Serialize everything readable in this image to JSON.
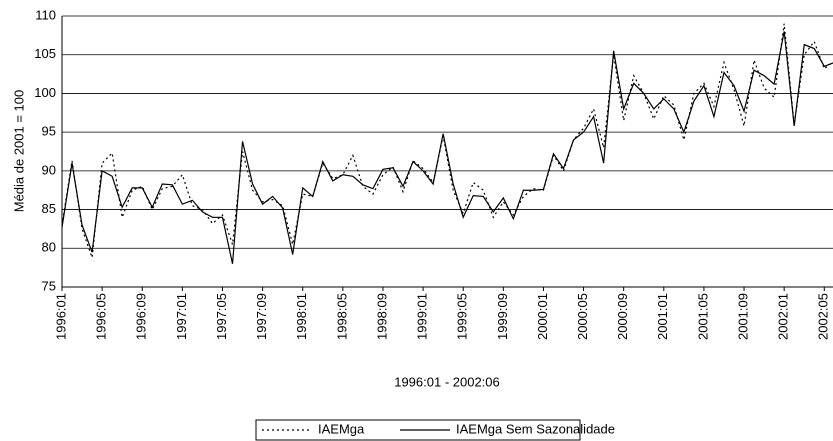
{
  "chart_data": {
    "type": "line",
    "x_label": "1996:01 - 2002:06",
    "y_label": "Média de 2001 = 100",
    "categories": [
      "1996:01",
      null,
      null,
      null,
      "1996:05",
      null,
      null,
      null,
      "1996:09",
      null,
      null,
      null,
      "1997:01",
      null,
      null,
      null,
      "1997:05",
      null,
      null,
      null,
      "1997:09",
      null,
      null,
      null,
      "1998:01",
      null,
      null,
      null,
      "1998:05",
      null,
      null,
      null,
      "1998:09",
      null,
      null,
      null,
      "1999:01",
      null,
      null,
      null,
      "1999:05",
      null,
      null,
      null,
      "1999:09",
      null,
      null,
      null,
      "2000:01",
      null,
      null,
      null,
      "2000:05",
      null,
      null,
      null,
      "2000:09",
      null,
      null,
      null,
      "2001:01",
      null,
      null,
      null,
      "2001:05",
      null,
      null,
      null,
      "2001:09",
      null,
      null,
      null,
      "2002:01",
      null,
      null,
      null,
      "2002:05",
      null
    ],
    "series": [
      {
        "name": "IAEMga",
        "color": "#000000",
        "dash": "dotted",
        "values": [
          83,
          91.3,
          82.5,
          78.8,
          91,
          92.3,
          84,
          87.5,
          88,
          85,
          87.7,
          88,
          89.5,
          85.5,
          85,
          83.2,
          84.3,
          80.5,
          92.5,
          87.5,
          86,
          86.3,
          85.5,
          80.5,
          87,
          86.7,
          91,
          89,
          89.5,
          92,
          88,
          87,
          89.5,
          90.5,
          87.3,
          91.3,
          90.3,
          88.5,
          94.5,
          87.5,
          84.5,
          88.5,
          87.5,
          84,
          86,
          84.3,
          86.7,
          87.7,
          87.5,
          92,
          90,
          94,
          95.5,
          98,
          93,
          105,
          96.5,
          102.3,
          100,
          96.7,
          99.7,
          98.5,
          94,
          100,
          101.3,
          98.3,
          104,
          100.5,
          95.8,
          104.3,
          100.7,
          99.5,
          109,
          96,
          105,
          106.7,
          103.2,
          104.2
        ]
      },
      {
        "name": "IAEMga Sem Sazonalidade",
        "color": "#000000",
        "dash": "solid",
        "values": [
          82.7,
          91,
          83,
          79.5,
          90,
          89.3,
          85.3,
          87.8,
          87.8,
          85.3,
          88.3,
          88.2,
          85.7,
          86.2,
          84.7,
          84,
          84,
          78,
          93.8,
          88.3,
          85.7,
          86.7,
          85.2,
          79.2,
          87.8,
          86.7,
          91.2,
          88.7,
          89.5,
          89.3,
          88.2,
          87.7,
          90.2,
          90.4,
          88,
          91.2,
          90,
          88.3,
          94.8,
          88.3,
          84,
          86.8,
          86.7,
          84.7,
          86.5,
          83.8,
          87.5,
          87.5,
          87.6,
          92.2,
          90.3,
          94,
          95,
          97,
          91,
          105.5,
          98,
          101.3,
          100,
          98,
          99.3,
          98,
          95,
          99,
          101,
          97,
          102.7,
          101,
          97.7,
          103,
          102.3,
          101.2,
          108,
          95.8,
          106.3,
          105.8,
          103.5,
          104
        ]
      }
    ],
    "ylim": [
      75,
      110
    ],
    "yticks": [
      75,
      80,
      85,
      90,
      95,
      100,
      105,
      110
    ],
    "grid": true,
    "legend": "bottom"
  }
}
